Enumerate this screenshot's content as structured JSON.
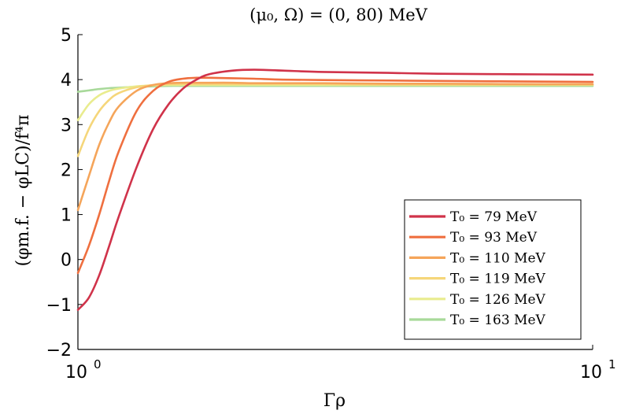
{
  "chart_data": {
    "type": "line",
    "title": "(μ₀, Ω) = (0, 80) MeV",
    "xlabel": "Γρ",
    "ylabel": "(φm.f. − φLC)/f⁴π",
    "xscale": "log",
    "xlim": [
      1,
      10
    ],
    "ylim": [
      -2,
      5
    ],
    "grid": false,
    "legend_position": "bottom-right",
    "yticks": [
      -2,
      -1,
      0,
      1,
      2,
      3,
      4,
      5
    ],
    "ytick_labels": [
      "−2",
      "−1",
      "0",
      "1",
      "2",
      "3",
      "4",
      "5"
    ],
    "xticks": [
      1,
      10
    ],
    "xtick_base": "10",
    "xtick_exponents": [
      "0",
      "1"
    ],
    "x": [
      1.0,
      1.05,
      1.1,
      1.15,
      1.2,
      1.3,
      1.4,
      1.5,
      1.6,
      1.7,
      1.8,
      2.0,
      2.2,
      2.5,
      3.0,
      4.0,
      5.0,
      7.0,
      10.0
    ],
    "series": [
      {
        "name": "T₀ = 79 MeV",
        "color": "#d0334a",
        "values": [
          -1.12,
          -0.85,
          -0.35,
          0.3,
          0.95,
          2.05,
          2.9,
          3.45,
          3.8,
          4.0,
          4.12,
          4.2,
          4.22,
          4.2,
          4.17,
          4.15,
          4.13,
          4.12,
          4.11
        ]
      },
      {
        "name": "T₀ = 93 MeV",
        "color": "#ef6f3f",
        "values": [
          -0.3,
          0.3,
          1.0,
          1.75,
          2.4,
          3.3,
          3.75,
          3.95,
          4.02,
          4.04,
          4.04,
          4.03,
          4.02,
          4.0,
          3.99,
          3.98,
          3.97,
          3.96,
          3.95
        ]
      },
      {
        "name": "T₀ = 110 MeV",
        "color": "#f5a55a",
        "values": [
          1.1,
          1.85,
          2.55,
          3.05,
          3.4,
          3.75,
          3.88,
          3.92,
          3.93,
          3.93,
          3.93,
          3.93,
          3.92,
          3.92,
          3.92,
          3.91,
          3.91,
          3.9,
          3.9
        ]
      },
      {
        "name": "T₀ = 119 MeV",
        "color": "#f5d67a",
        "values": [
          2.3,
          2.9,
          3.3,
          3.55,
          3.7,
          3.83,
          3.88,
          3.9,
          3.9,
          3.9,
          3.9,
          3.9,
          3.9,
          3.9,
          3.9,
          3.89,
          3.89,
          3.89,
          3.89
        ]
      },
      {
        "name": "T₀ = 126 MeV",
        "color": "#e9ec8e",
        "values": [
          3.1,
          3.45,
          3.65,
          3.75,
          3.8,
          3.85,
          3.87,
          3.88,
          3.88,
          3.88,
          3.88,
          3.88,
          3.88,
          3.88,
          3.88,
          3.88,
          3.88,
          3.88,
          3.88
        ]
      },
      {
        "name": "T₀ = 163 MeV",
        "color": "#a8d99a",
        "values": [
          3.73,
          3.76,
          3.79,
          3.81,
          3.82,
          3.84,
          3.85,
          3.86,
          3.86,
          3.86,
          3.86,
          3.86,
          3.86,
          3.86,
          3.86,
          3.86,
          3.86,
          3.86,
          3.86
        ]
      }
    ]
  }
}
